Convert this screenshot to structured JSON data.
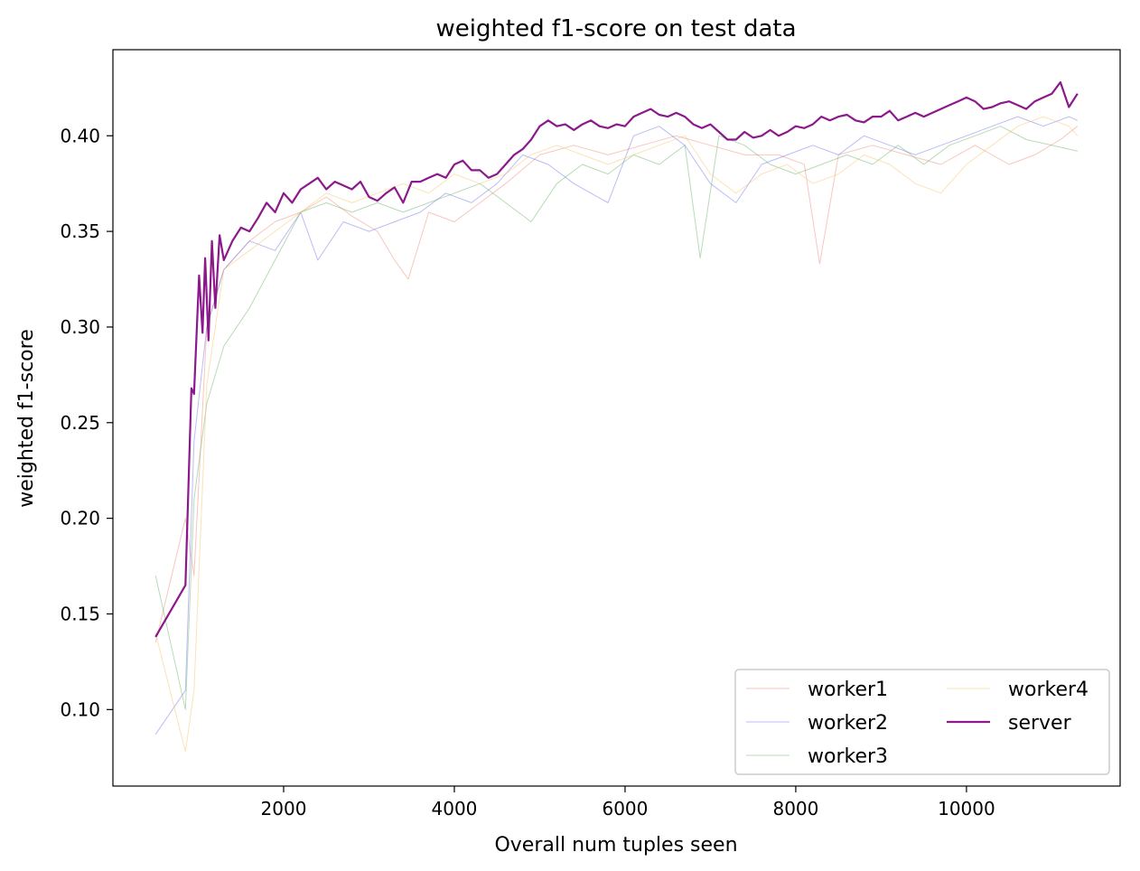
{
  "chart_data": {
    "type": "line",
    "title": "weighted f1-score on test data",
    "xlabel": "Overall num tuples seen",
    "ylabel": "weighted f1-score",
    "xlim": [
      0,
      11800
    ],
    "ylim": [
      0.06,
      0.445
    ],
    "x_ticks": [
      2000,
      4000,
      6000,
      8000,
      10000
    ],
    "y_ticks": [
      0.1,
      0.15,
      0.2,
      0.25,
      0.3,
      0.35,
      0.4
    ],
    "x_tick_labels": [
      "2000",
      "4000",
      "6000",
      "8000",
      "10000"
    ],
    "y_tick_labels": [
      "0.10",
      "0.15",
      "0.20",
      "0.25",
      "0.30",
      "0.35",
      "0.40"
    ],
    "grid": false,
    "legend": {
      "placement": "lower-right",
      "columns": 2
    },
    "series": [
      {
        "name": "worker1",
        "color": "#f08070",
        "width": 1,
        "opacity": 0.45,
        "x": [
          500,
          850,
          950,
          1100,
          1300,
          1600,
          1900,
          2200,
          2500,
          2800,
          3100,
          3300,
          3460,
          3700,
          4000,
          4300,
          4600,
          5000,
          5400,
          5800,
          6200,
          6600,
          7000,
          7400,
          7800,
          8100,
          8280,
          8500,
          8900,
          9300,
          9700,
          10100,
          10500,
          10800,
          11100,
          11300
        ],
        "values": [
          0.135,
          0.2,
          0.17,
          0.3,
          0.33,
          0.345,
          0.355,
          0.36,
          0.368,
          0.358,
          0.35,
          0.335,
          0.325,
          0.36,
          0.355,
          0.365,
          0.375,
          0.39,
          0.395,
          0.39,
          0.395,
          0.4,
          0.395,
          0.39,
          0.39,
          0.385,
          0.333,
          0.39,
          0.395,
          0.39,
          0.385,
          0.395,
          0.385,
          0.39,
          0.398,
          0.405
        ]
      },
      {
        "name": "worker2",
        "color": "#6a6af0",
        "width": 1,
        "opacity": 0.45,
        "x": [
          500,
          850,
          950,
          1100,
          1300,
          1600,
          1900,
          2200,
          2400,
          2700,
          3000,
          3300,
          3600,
          3900,
          4200,
          4500,
          4800,
          5100,
          5400,
          5800,
          6100,
          6400,
          6700,
          7000,
          7300,
          7600,
          7900,
          8200,
          8500,
          8800,
          9100,
          9400,
          9700,
          10000,
          10300,
          10600,
          10900,
          11200,
          11300
        ],
        "values": [
          0.087,
          0.11,
          0.24,
          0.3,
          0.33,
          0.345,
          0.34,
          0.36,
          0.335,
          0.355,
          0.35,
          0.355,
          0.36,
          0.37,
          0.365,
          0.375,
          0.39,
          0.385,
          0.375,
          0.365,
          0.4,
          0.405,
          0.395,
          0.375,
          0.365,
          0.385,
          0.39,
          0.395,
          0.39,
          0.4,
          0.395,
          0.39,
          0.395,
          0.4,
          0.405,
          0.41,
          0.405,
          0.41,
          0.408
        ]
      },
      {
        "name": "worker3",
        "color": "#60b060",
        "width": 1,
        "opacity": 0.45,
        "x": [
          500,
          850,
          950,
          1100,
          1300,
          1600,
          1900,
          2200,
          2500,
          2800,
          3100,
          3400,
          3700,
          4000,
          4300,
          4600,
          4900,
          5200,
          5500,
          5800,
          6100,
          6400,
          6700,
          6880,
          7100,
          7400,
          7700,
          8000,
          8300,
          8600,
          8900,
          9200,
          9500,
          9800,
          10100,
          10400,
          10700,
          11000,
          11300
        ],
        "values": [
          0.17,
          0.1,
          0.21,
          0.26,
          0.29,
          0.31,
          0.335,
          0.36,
          0.365,
          0.36,
          0.365,
          0.36,
          0.365,
          0.37,
          0.375,
          0.365,
          0.355,
          0.375,
          0.385,
          0.38,
          0.39,
          0.385,
          0.395,
          0.336,
          0.4,
          0.395,
          0.385,
          0.38,
          0.385,
          0.39,
          0.385,
          0.395,
          0.385,
          0.395,
          0.4,
          0.405,
          0.398,
          0.395,
          0.392
        ]
      },
      {
        "name": "worker4",
        "color": "#f5c060",
        "width": 1,
        "opacity": 0.45,
        "x": [
          500,
          850,
          950,
          1100,
          1300,
          1600,
          1900,
          2200,
          2500,
          2800,
          3100,
          3400,
          3700,
          4000,
          4300,
          4600,
          4900,
          5200,
          5500,
          5800,
          6100,
          6400,
          6700,
          7000,
          7300,
          7600,
          7900,
          8200,
          8500,
          8800,
          9100,
          9400,
          9700,
          10000,
          10300,
          10600,
          10900,
          11200,
          11300
        ],
        "values": [
          0.14,
          0.078,
          0.11,
          0.27,
          0.33,
          0.34,
          0.35,
          0.36,
          0.37,
          0.365,
          0.37,
          0.375,
          0.37,
          0.38,
          0.375,
          0.38,
          0.39,
          0.395,
          0.39,
          0.385,
          0.39,
          0.395,
          0.4,
          0.38,
          0.37,
          0.38,
          0.385,
          0.375,
          0.38,
          0.39,
          0.385,
          0.375,
          0.37,
          0.385,
          0.395,
          0.405,
          0.41,
          0.405,
          0.4
        ]
      },
      {
        "name": "server",
        "color": "#800080",
        "width": 2.2,
        "opacity": 0.9,
        "x": [
          500,
          850,
          920,
          950,
          1010,
          1050,
          1080,
          1120,
          1160,
          1200,
          1250,
          1300,
          1400,
          1500,
          1600,
          1700,
          1800,
          1900,
          2000,
          2100,
          2200,
          2300,
          2400,
          2500,
          2600,
          2700,
          2800,
          2900,
          3000,
          3100,
          3200,
          3300,
          3400,
          3500,
          3600,
          3700,
          3800,
          3900,
          4000,
          4100,
          4200,
          4300,
          4400,
          4500,
          4600,
          4700,
          4800,
          4900,
          5000,
          5100,
          5200,
          5300,
          5400,
          5500,
          5600,
          5700,
          5800,
          5900,
          6000,
          6100,
          6200,
          6300,
          6400,
          6500,
          6600,
          6700,
          6800,
          6900,
          7000,
          7100,
          7200,
          7300,
          7400,
          7500,
          7600,
          7700,
          7800,
          7900,
          8000,
          8100,
          8200,
          8300,
          8400,
          8500,
          8600,
          8700,
          8800,
          8900,
          9000,
          9100,
          9200,
          9300,
          9400,
          9500,
          9600,
          9700,
          9800,
          9900,
          10000,
          10100,
          10200,
          10300,
          10400,
          10500,
          10600,
          10700,
          10800,
          10900,
          11000,
          11100,
          11200,
          11300
        ],
        "values": [
          0.138,
          0.165,
          0.268,
          0.265,
          0.327,
          0.297,
          0.336,
          0.293,
          0.345,
          0.31,
          0.348,
          0.335,
          0.345,
          0.352,
          0.35,
          0.357,
          0.365,
          0.36,
          0.37,
          0.365,
          0.372,
          0.375,
          0.378,
          0.372,
          0.376,
          0.374,
          0.372,
          0.376,
          0.368,
          0.366,
          0.37,
          0.373,
          0.365,
          0.376,
          0.376,
          0.378,
          0.38,
          0.378,
          0.385,
          0.387,
          0.382,
          0.382,
          0.378,
          0.38,
          0.385,
          0.39,
          0.393,
          0.398,
          0.405,
          0.408,
          0.405,
          0.406,
          0.403,
          0.406,
          0.408,
          0.405,
          0.404,
          0.406,
          0.405,
          0.41,
          0.412,
          0.414,
          0.411,
          0.41,
          0.412,
          0.41,
          0.406,
          0.404,
          0.406,
          0.402,
          0.398,
          0.398,
          0.402,
          0.399,
          0.4,
          0.403,
          0.4,
          0.402,
          0.405,
          0.404,
          0.406,
          0.41,
          0.408,
          0.41,
          0.411,
          0.408,
          0.407,
          0.41,
          0.41,
          0.413,
          0.408,
          0.41,
          0.412,
          0.41,
          0.412,
          0.414,
          0.416,
          0.418,
          0.42,
          0.418,
          0.414,
          0.415,
          0.417,
          0.418,
          0.416,
          0.414,
          0.418,
          0.42,
          0.422,
          0.428,
          0.415,
          0.422
        ]
      }
    ]
  }
}
